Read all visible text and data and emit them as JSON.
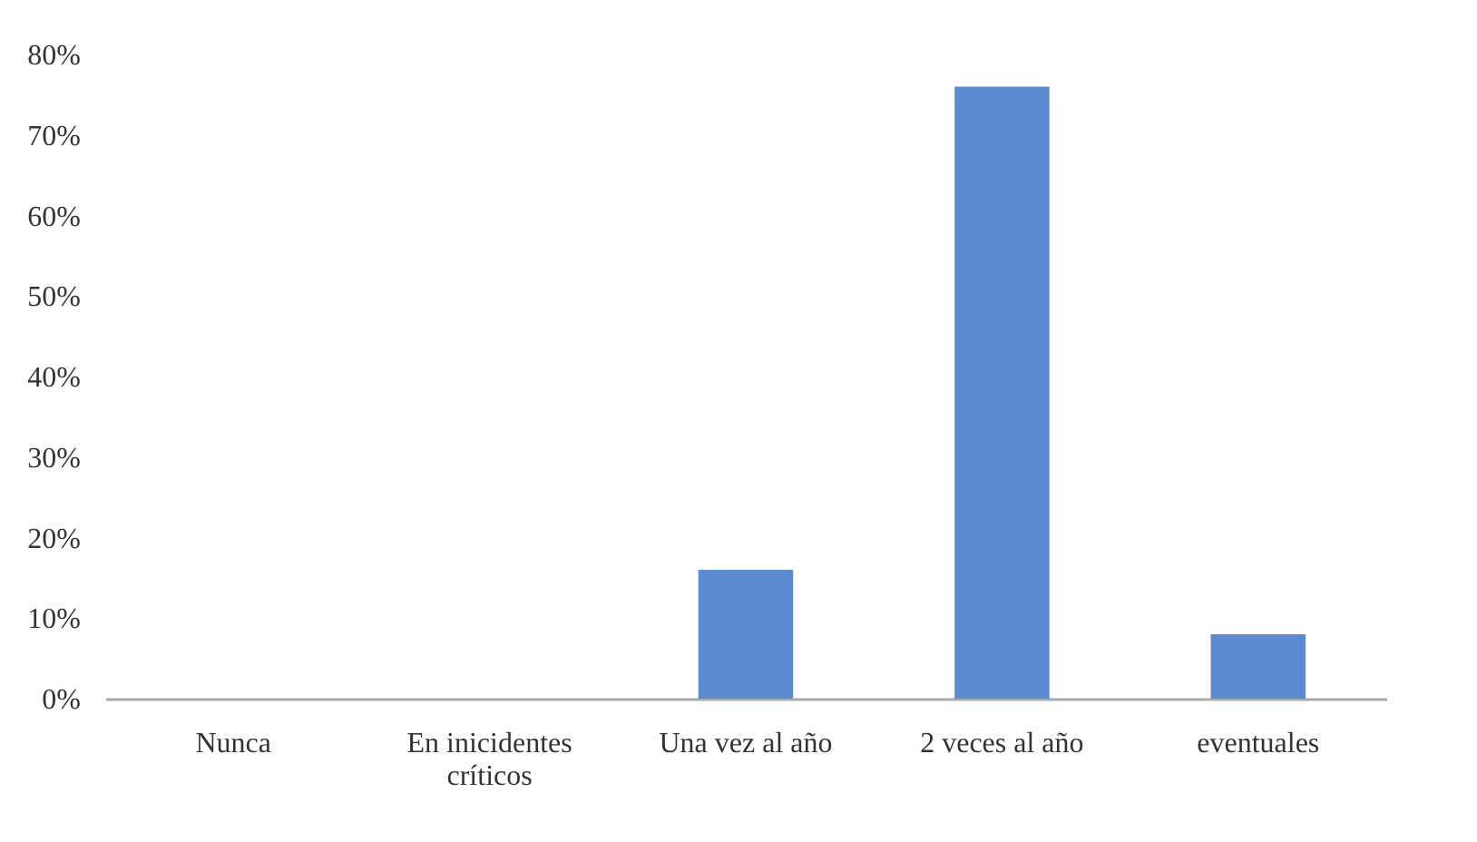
{
  "chart_data": {
    "type": "bar",
    "categories": [
      "Nunca",
      "En inicidentes críticos",
      "Una vez al año",
      "2 veces al año",
      "eventuales"
    ],
    "values": [
      0,
      0,
      16,
      76,
      8
    ],
    "color": "#5b8bd0",
    "ylim": [
      0,
      80
    ],
    "yticks": [
      {
        "value": 0,
        "label": "0%"
      },
      {
        "value": 10,
        "label": "10%"
      },
      {
        "value": 20,
        "label": "20%"
      },
      {
        "value": 30,
        "label": "30%"
      },
      {
        "value": 40,
        "label": "40%"
      },
      {
        "value": 50,
        "label": "50%"
      },
      {
        "value": 60,
        "label": "60%"
      },
      {
        "value": 70,
        "label": "70%"
      },
      {
        "value": 80,
        "label": "80%"
      }
    ],
    "grid": false
  }
}
